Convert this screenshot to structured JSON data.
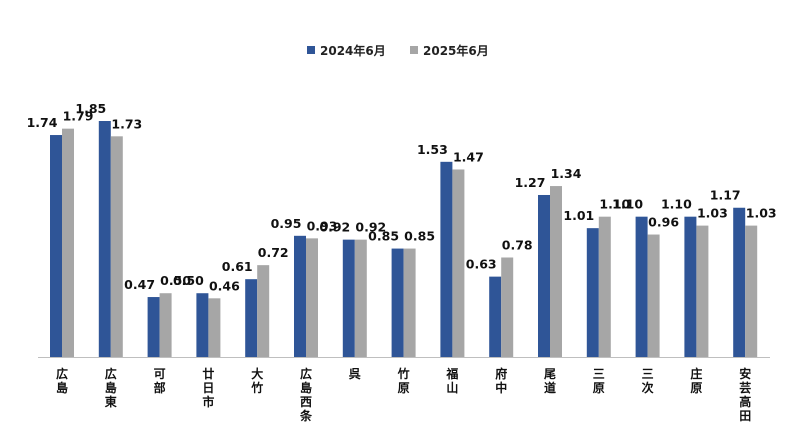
{
  "chart_data": {
    "type": "bar",
    "categories": [
      "広島",
      "広島東",
      "可部",
      "廿日市",
      "大竹",
      "広島西条",
      "呉",
      "竹原",
      "福山",
      "府中",
      "尾道",
      "三原",
      "三次",
      "庄原",
      "安芸高田"
    ],
    "series": [
      {
        "name": "2024年6月",
        "color": "#2F5597",
        "values": [
          1.74,
          1.85,
          0.47,
          0.5,
          0.61,
          0.95,
          0.92,
          0.85,
          1.53,
          0.63,
          1.27,
          1.01,
          1.1,
          1.1,
          1.17
        ]
      },
      {
        "name": "2025年6月",
        "color": "#A6A6A6",
        "values": [
          1.79,
          1.73,
          0.5,
          0.46,
          0.72,
          0.93,
          0.92,
          0.85,
          1.47,
          0.78,
          1.34,
          1.1,
          0.96,
          1.03,
          1.03
        ]
      }
    ],
    "value_labels": [
      [
        "1.74",
        "1.85",
        "0.47",
        "0.50",
        "0.61",
        "0.95",
        "0.92",
        "0.85",
        "1.53",
        "0.63",
        "1.27",
        "1.01",
        "1.10",
        "1.10",
        "1.17"
      ],
      [
        "1.79",
        "1.73",
        "0.50",
        "0.46",
        "0.72",
        "0.93",
        "0.92",
        "0.85",
        "1.47",
        "0.78",
        "1.34",
        "1.10",
        "0.96",
        "1.03",
        "1.03"
      ]
    ],
    "ylim": [
      0,
      1.85
    ],
    "grid": false,
    "legend_position": "top-center",
    "title": "",
    "xlabel": "",
    "ylabel": ""
  }
}
